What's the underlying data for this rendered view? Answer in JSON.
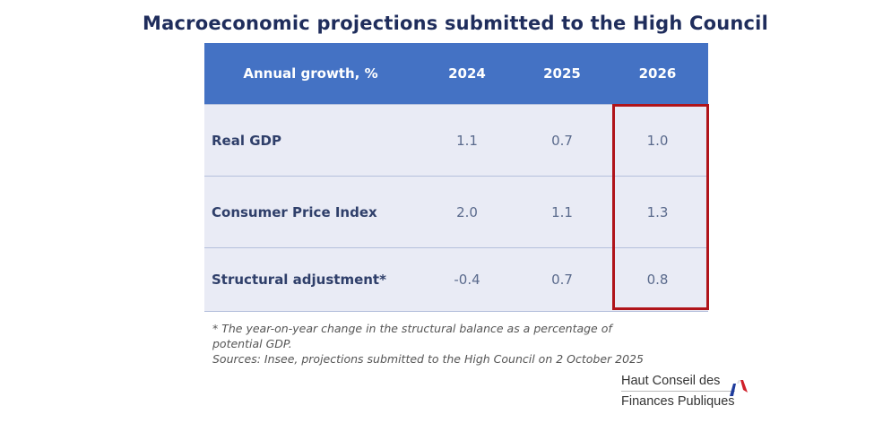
{
  "title": "Macroeconomic projections submitted to the High Council",
  "table": {
    "headers": [
      "Annual growth, %",
      "2024",
      "2025",
      "2026"
    ],
    "rows": [
      {
        "label": "Real GDP",
        "values": [
          "1.1",
          "0.7",
          "1.0"
        ]
      },
      {
        "label": "Consumer Price Index",
        "values": [
          "2.0",
          "1.1",
          "1.3"
        ]
      },
      {
        "label": "Structural adjustment*",
        "values": [
          "-0.4",
          "0.7",
          "0.8"
        ]
      }
    ],
    "highlighted_column": "2026"
  },
  "footnote": {
    "line1": "* The year-on-year  change in the structural balance as a percentage of",
    "line2": "potential GDP.",
    "sources": "Sources: Insee, projections submitted to the High Council on 2 October 2025"
  },
  "logo": {
    "line1": "Haut Conseil des",
    "line2": "Finances Publiques"
  },
  "colors": {
    "header": "#4472c4",
    "highlight": "#b0141a",
    "title": "#1f2d5c"
  }
}
